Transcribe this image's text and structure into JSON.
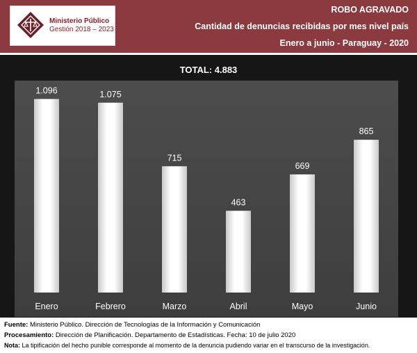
{
  "logo": {
    "line1": "Ministerio Público",
    "line2": "Gestión 2018 – 2023"
  },
  "header": {
    "title": "ROBO AGRAVADO",
    "subtitle": "Cantidad de denuncias recibidas por mes nivel país",
    "period": "Enero a junio - Paraguay - 2020"
  },
  "total_label": "TOTAL: 4.883",
  "chart_data": {
    "type": "bar",
    "title": "TOTAL: 4.883",
    "categories": [
      "Enero",
      "Febrero",
      "Marzo",
      "Abril",
      "Mayo",
      "Junio"
    ],
    "values": [
      1096,
      1075,
      715,
      463,
      669,
      865
    ],
    "labels": [
      "1.096",
      "1.075",
      "715",
      "463",
      "669",
      "865"
    ],
    "ylim": [
      0,
      1200
    ],
    "grid": false,
    "legend": "none",
    "colors": {
      "background": "#161616",
      "plot_area": "#4a4a4a",
      "bar": "#ffffff",
      "header": "#8b3a3f"
    }
  },
  "footer": {
    "fuente_label": "Fuente:",
    "fuente_text": " Ministerio Público. Dirección de Tecnologías de la Información y Comunicación",
    "proc_label": "Procesamiento:",
    "proc_text": " Dirección de Planificación. Departamento de Estadísticas. Fecha: 10 de julio 2020",
    "nota_label": "Nota:",
    "nota_text": "  La tipificación del hecho punible corresponde al momento de la denuncia pudiendo variar en el transcurso de la investigación."
  }
}
